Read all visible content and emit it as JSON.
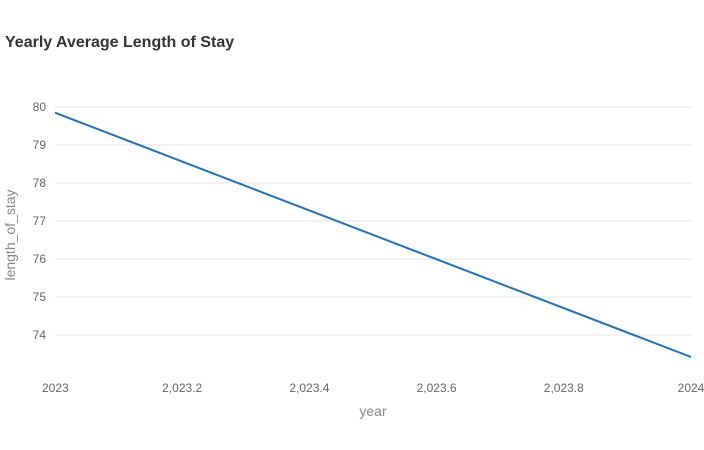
{
  "chart_data": {
    "type": "line",
    "title": "Yearly Average Length of Stay",
    "xlabel": "year",
    "ylabel": "length_of_stay",
    "x_ticks": [
      "2023",
      "2,023.2",
      "2,023.4",
      "2,023.6",
      "2,023.8",
      "2024"
    ],
    "x_tick_values": [
      2023,
      2023.2,
      2023.4,
      2023.6,
      2023.8,
      2024
    ],
    "y_ticks": [
      74,
      75,
      76,
      77,
      78,
      79,
      80
    ],
    "xlim": [
      2023,
      2024
    ],
    "ylim": [
      73,
      80.2
    ],
    "grid": true,
    "series": [
      {
        "color": "#1f6fc4",
        "x": [
          2023,
          2024
        ],
        "y": [
          79.85,
          73.42
        ]
      }
    ]
  }
}
